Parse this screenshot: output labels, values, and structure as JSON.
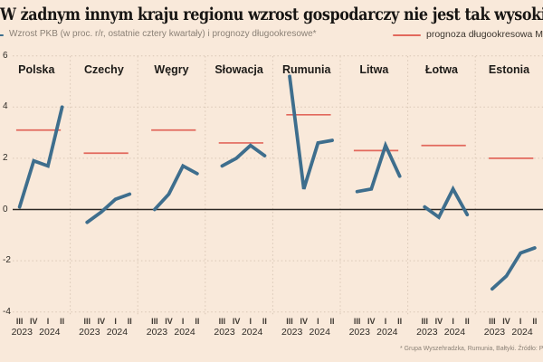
{
  "header": {
    "title": "W żadnym innym kraju regionu wzrost gospodarczy nie jest tak wysoki jak w Polsce",
    "legend_series": "Wzrost PKB (w proc. r/r, ostatnie cztery kwartały) i prognozy długookresowe*",
    "legend_forecast": "prognoza długookresowa MFW"
  },
  "footer": {
    "footnote": "* Grupa Wyszehradzka, Rumunia, Bałtyki. Źródło: P"
  },
  "chart_data": {
    "type": "line",
    "small_multiples": true,
    "title": "W żadnym innym kraju regionu wzrost gospodarczy nie jest tak wysoki jak w Polsce",
    "xlabel": "",
    "ylabel": "Wzrost PKB (w proc. r/r)",
    "x_categories": [
      "III",
      "IV",
      "I",
      "II"
    ],
    "x_years": [
      "2023",
      "2024"
    ],
    "yticks": [
      6,
      4,
      2,
      0,
      -2,
      -4
    ],
    "ylim": [
      -4.6,
      6.3
    ],
    "grid": "dotted",
    "legend_position": "top",
    "colors": {
      "series": "#3e6e8d",
      "forecast": "#e2685c",
      "background": "#f9e9da",
      "grid": "#d9c7b6",
      "zero_line": "#2b2722",
      "title_text": "#171513",
      "muted_text": "#8b8176"
    },
    "panels": [
      {
        "country": "Polska",
        "values": [
          0.1,
          1.9,
          1.7,
          4.0
        ],
        "forecast": 3.1
      },
      {
        "country": "Czechy",
        "values": [
          -0.5,
          -0.1,
          0.4,
          0.6
        ],
        "forecast": 2.2
      },
      {
        "country": "Węgry",
        "values": [
          0.0,
          0.6,
          1.7,
          1.4
        ],
        "forecast": 3.1
      },
      {
        "country": "Słowacja",
        "values": [
          1.7,
          2.0,
          2.5,
          2.1
        ],
        "forecast": 2.6
      },
      {
        "country": "Rumunia",
        "values": [
          5.2,
          0.8,
          2.6,
          2.7
        ],
        "forecast": 3.7
      },
      {
        "country": "Litwa",
        "values": [
          0.7,
          0.8,
          2.5,
          1.3
        ],
        "forecast": 2.3
      },
      {
        "country": "Łotwa",
        "values": [
          0.1,
          -0.3,
          0.8,
          -0.2
        ],
        "forecast": 2.5
      },
      {
        "country": "Estonia",
        "values": [
          -3.1,
          -2.6,
          -1.7,
          -1.5
        ],
        "forecast": 2.0
      }
    ]
  }
}
